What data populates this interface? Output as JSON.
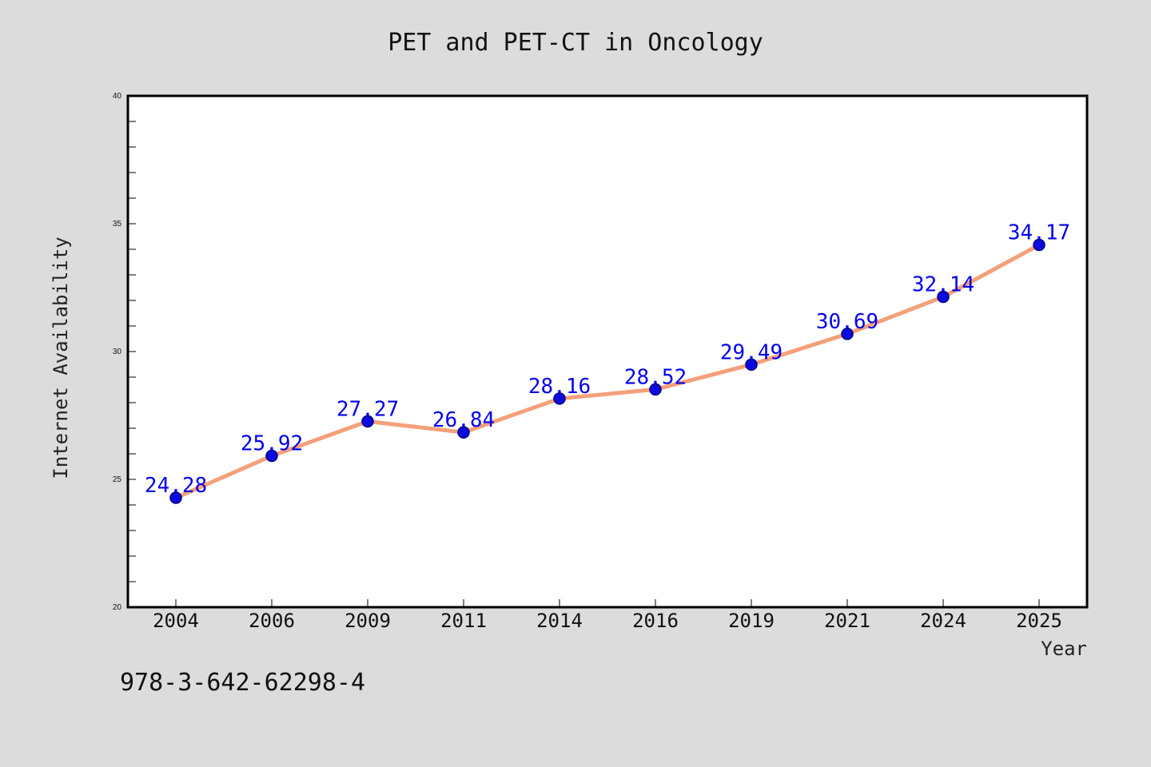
{
  "chart_data": {
    "type": "line",
    "title": "PET and PET-CT in Oncology",
    "xlabel": "Year",
    "ylabel": "Internet Availability",
    "categories": [
      "2004",
      "2006",
      "2009",
      "2011",
      "2014",
      "2016",
      "2019",
      "2021",
      "2024",
      "2025"
    ],
    "values": [
      24.28,
      25.92,
      27.27,
      26.84,
      28.16,
      28.52,
      29.49,
      30.69,
      32.14,
      34.17
    ],
    "data_labels": [
      "24.28",
      "25.92",
      "27.27",
      "26.84",
      "28.16",
      "28.52",
      "29.49",
      "30.69",
      "32.14",
      "34.17"
    ],
    "ylim": [
      20,
      40
    ],
    "yticks": [
      "20",
      "25",
      "30",
      "35",
      "40"
    ],
    "grid": false,
    "legend": "none",
    "colors": {
      "line": "#f4a07a",
      "marker": "#0a0ae0",
      "marker_edge": "#00007a",
      "label": "#0000ee",
      "plot_bg": "#ffffff",
      "page_bg": "#dcdcdc"
    }
  },
  "footnote": "978-3-642-62298-4"
}
